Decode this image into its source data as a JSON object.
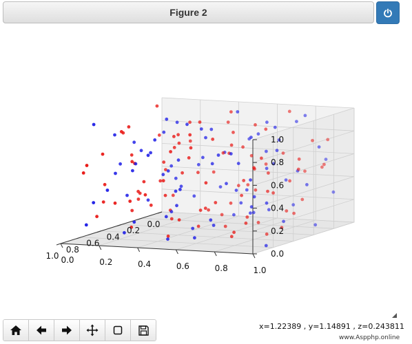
{
  "window": {
    "title": "Figure 2",
    "power_icon": "power-icon"
  },
  "toolbar": {
    "buttons": [
      {
        "name": "home-button",
        "icon": "home-icon"
      },
      {
        "name": "back-button",
        "icon": "arrow-left-icon"
      },
      {
        "name": "forward-button",
        "icon": "arrow-right-icon"
      },
      {
        "name": "pan-button",
        "icon": "move-icon"
      },
      {
        "name": "zoom-button",
        "icon": "square-icon"
      },
      {
        "name": "save-button",
        "icon": "floppy-icon"
      }
    ]
  },
  "status": {
    "coordinates": "x=1.22389 , y=1.14891 , z=0.243811",
    "watermark": "www.Aspphp.online"
  },
  "chart_data": {
    "type": "scatter",
    "dimensions": 3,
    "title": "",
    "xlabel": "",
    "ylabel": "",
    "zlabel": "",
    "xlim": [
      0,
      1
    ],
    "ylim": [
      0,
      1
    ],
    "zlim": [
      0,
      1
    ],
    "x_ticks": [
      "0.0",
      "0.2",
      "0.4",
      "0.6",
      "0.8",
      "1.0"
    ],
    "y_ticks": [
      "0.0",
      "0.2",
      "0.4",
      "0.6",
      "0.8",
      "1.0"
    ],
    "z_ticks": [
      "0.0",
      "0.2",
      "0.4",
      "0.6",
      "0.8",
      "1.0"
    ],
    "grid": true,
    "colors": {
      "red_series": "#e8120f",
      "blue_series": "#1919e6"
    },
    "series": [
      {
        "color": "#e8120f",
        "points": [
          [
            0.12,
            0.05,
            0.71
          ],
          [
            0.88,
            0.22,
            0.34
          ],
          [
            0.35,
            0.67,
            0.92
          ],
          [
            0.56,
            0.14,
            0.18
          ],
          [
            0.73,
            0.81,
            0.55
          ],
          [
            0.04,
            0.42,
            0.28
          ],
          [
            0.91,
            0.63,
            0.87
          ],
          [
            0.27,
            0.33,
            0.45
          ],
          [
            0.62,
            0.95,
            0.12
          ],
          [
            0.45,
            0.08,
            0.63
          ],
          [
            0.18,
            0.76,
            0.39
          ],
          [
            0.83,
            0.47,
            0.06
          ],
          [
            0.39,
            0.29,
            0.81
          ],
          [
            0.67,
            0.58,
            0.27
          ],
          [
            0.09,
            0.91,
            0.74
          ],
          [
            0.52,
            0.38,
            0.52
          ],
          [
            0.95,
            0.11,
            0.68
          ],
          [
            0.31,
            0.85,
            0.15
          ],
          [
            0.76,
            0.19,
            0.93
          ],
          [
            0.14,
            0.54,
            0.58
          ],
          [
            0.58,
            0.72,
            0.37
          ],
          [
            0.86,
            0.89,
            0.22
          ],
          [
            0.22,
            0.16,
            0.09
          ],
          [
            0.47,
            0.61,
            0.77
          ],
          [
            0.69,
            0.27,
            0.48
          ],
          [
            0.03,
            0.68,
            0.95
          ],
          [
            0.79,
            0.36,
            0.31
          ],
          [
            0.41,
            0.93,
            0.66
          ],
          [
            0.64,
            0.04,
            0.42
          ],
          [
            0.25,
            0.49,
            0.19
          ],
          [
            0.97,
            0.74,
            0.59
          ],
          [
            0.16,
            0.23,
            0.85
          ],
          [
            0.54,
            0.83,
            0.03
          ],
          [
            0.72,
            0.52,
            0.72
          ],
          [
            0.33,
            0.06,
            0.26
          ],
          [
            0.07,
            0.87,
            0.49
          ],
          [
            0.89,
            0.31,
            0.14
          ],
          [
            0.48,
            0.45,
            0.96
          ],
          [
            0.61,
            0.18,
            0.61
          ],
          [
            0.29,
            0.64,
            0.33
          ],
          [
            0.84,
            0.96,
            0.79
          ],
          [
            0.11,
            0.37,
            0.04
          ],
          [
            0.43,
            0.78,
            0.53
          ],
          [
            0.66,
            0.41,
            0.88
          ],
          [
            0.21,
            0.13,
            0.44
          ],
          [
            0.93,
            0.58,
            0.24
          ],
          [
            0.37,
            0.26,
            0.69
          ],
          [
            0.59,
            0.89,
            0.41
          ],
          [
            0.06,
            0.09,
            0.17
          ],
          [
            0.77,
            0.67,
            0.91
          ],
          [
            0.24,
            0.97,
            0.57
          ],
          [
            0.51,
            0.32,
            0.11
          ],
          [
            0.98,
            0.43,
            0.46
          ],
          [
            0.34,
            0.55,
            0.84
          ],
          [
            0.71,
            0.07,
            0.29
          ],
          [
            0.15,
            0.71,
            0.62
          ],
          [
            0.87,
            0.15,
            0.76
          ],
          [
            0.44,
            0.88,
            0.21
          ],
          [
            0.63,
            0.35,
            0.35
          ],
          [
            0.19,
            0.46,
            0.97
          ],
          [
            0.81,
            0.79,
            0.08
          ],
          [
            0.38,
            0.21,
            0.56
          ],
          [
            0.57,
            0.65,
            0.73
          ],
          [
            0.02,
            0.28,
            0.38
          ],
          [
            0.74,
            0.94,
            0.47
          ],
          [
            0.28,
            0.39,
            0.13
          ],
          [
            0.92,
            0.53,
            0.83
          ],
          [
            0.46,
            0.12,
            0.25
          ],
          [
            0.68,
            0.84,
            0.64
          ],
          [
            0.13,
            0.61,
            0.51
          ],
          [
            0.85,
            0.04,
            0.58
          ],
          [
            0.36,
            0.73,
            0.89
          ],
          [
            0.55,
            0.48,
            0.07
          ],
          [
            0.08,
            0.19,
            0.66
          ],
          [
            0.78,
            0.69,
            0.36
          ],
          [
            0.26,
            0.92,
            0.78
          ],
          [
            0.49,
            0.25,
            0.43
          ],
          [
            0.94,
            0.87,
            0.16
          ],
          [
            0.32,
            0.59,
            0.71
          ],
          [
            0.65,
            0.17,
            0.94
          ],
          [
            0.17,
            0.82,
            0.23
          ],
          [
            0.82,
            0.44,
            0.54
          ],
          [
            0.42,
            0.02,
            0.81
          ],
          [
            0.6,
            0.76,
            0.19
          ],
          [
            0.1,
            0.5,
            0.31
          ],
          [
            0.75,
            0.24,
            0.67
          ],
          [
            0.3,
            0.66,
            0.05
          ],
          [
            0.53,
            0.99,
            0.61
          ],
          [
            0.96,
            0.34,
            0.39
          ],
          [
            0.2,
            0.08,
            0.99
          ],
          [
            0.7,
            0.57,
            0.26
          ],
          [
            0.4,
            0.3,
            0.74
          ],
          [
            0.05,
            0.77,
            0.44
          ],
          [
            0.9,
            0.62,
            0.98
          ],
          [
            0.23,
            0.44,
            0.62
          ],
          [
            0.5,
            0.14,
            0.33
          ],
          [
            0.8,
            0.9,
            0.69
          ],
          [
            0.36,
            0.52,
            0.02
          ],
          [
            0.01,
            0.35,
            0.82
          ],
          [
            0.68,
            0.02,
            0.15
          ]
        ]
      },
      {
        "color": "#1919e6",
        "points": [
          [
            0.09,
            0.12,
            0.33
          ],
          [
            0.84,
            0.29,
            0.62
          ],
          [
            0.31,
            0.72,
            0.17
          ],
          [
            0.58,
            0.06,
            0.84
          ],
          [
            0.72,
            0.86,
            0.41
          ],
          [
            0.03,
            0.47,
            0.69
          ],
          [
            0.93,
            0.66,
            0.09
          ],
          [
            0.26,
            0.35,
            0.58
          ],
          [
            0.61,
            0.92,
            0.79
          ],
          [
            0.44,
            0.16,
            0.24
          ],
          [
            0.17,
            0.79,
            0.91
          ],
          [
            0.87,
            0.53,
            0.47
          ],
          [
            0.38,
            0.25,
            0.13
          ],
          [
            0.66,
            0.61,
            0.66
          ],
          [
            0.11,
            0.95,
            0.29
          ],
          [
            0.53,
            0.41,
            0.95
          ],
          [
            0.96,
            0.15,
            0.36
          ],
          [
            0.33,
            0.88,
            0.53
          ],
          [
            0.77,
            0.21,
            0.05
          ],
          [
            0.13,
            0.57,
            0.77
          ],
          [
            0.55,
            0.75,
            0.21
          ],
          [
            0.89,
            0.93,
            0.61
          ],
          [
            0.21,
            0.19,
            0.86
          ],
          [
            0.48,
            0.64,
            0.38
          ],
          [
            0.7,
            0.31,
            0.74
          ],
          [
            0.05,
            0.71,
            0.14
          ],
          [
            0.81,
            0.39,
            0.89
          ],
          [
            0.41,
            0.97,
            0.44
          ],
          [
            0.63,
            0.09,
            0.52
          ],
          [
            0.24,
            0.52,
            0.99
          ],
          [
            0.98,
            0.77,
            0.27
          ],
          [
            0.15,
            0.27,
            0.48
          ],
          [
            0.51,
            0.85,
            0.64
          ],
          [
            0.74,
            0.55,
            0.11
          ],
          [
            0.35,
            0.04,
            0.71
          ],
          [
            0.07,
            0.89,
            0.56
          ],
          [
            0.9,
            0.33,
            0.19
          ],
          [
            0.46,
            0.47,
            0.82
          ],
          [
            0.59,
            0.13,
            0.32
          ],
          [
            0.28,
            0.69,
            0.67
          ],
          [
            0.85,
            0.99,
            0.03
          ],
          [
            0.12,
            0.39,
            0.59
          ],
          [
            0.42,
            0.81,
            0.93
          ],
          [
            0.67,
            0.43,
            0.28
          ],
          [
            0.19,
            0.11,
            0.76
          ],
          [
            0.94,
            0.59,
            0.51
          ],
          [
            0.36,
            0.29,
            0.35
          ],
          [
            0.57,
            0.91,
            0.87
          ],
          [
            0.04,
            0.07,
            0.42
          ],
          [
            0.78,
            0.68,
            0.16
          ],
          [
            0.27,
            0.96,
            0.73
          ],
          [
            0.52,
            0.36,
            0.63
          ],
          [
            0.99,
            0.45,
            0.81
          ],
          [
            0.32,
            0.58,
            0.22
          ],
          [
            0.73,
            0.03,
            0.97
          ],
          [
            0.16,
            0.73,
            0.39
          ],
          [
            0.88,
            0.18,
            0.45
          ],
          [
            0.45,
            0.87,
            0.12
          ],
          [
            0.64,
            0.37,
            0.57
          ],
          [
            0.22,
            0.49,
            0.08
          ],
          [
            0.8,
            0.82,
            0.72
          ],
          [
            0.39,
            0.23,
            0.94
          ],
          [
            0.56,
            0.63,
            0.46
          ],
          [
            0.01,
            0.31,
            0.25
          ],
          [
            0.75,
            0.94,
            0.37
          ],
          [
            0.29,
            0.41,
            0.84
          ],
          [
            0.91,
            0.51,
            0.06
          ],
          [
            0.47,
            0.14,
            0.68
          ],
          [
            0.69,
            0.83,
            0.31
          ],
          [
            0.14,
            0.62,
            0.88
          ],
          [
            0.86,
            0.06,
            0.13
          ],
          [
            0.37,
            0.74,
            0.55
          ],
          [
            0.54,
            0.49,
            0.92
          ],
          [
            0.08,
            0.21,
            0.18
          ],
          [
            0.79,
            0.71,
            0.78
          ],
          [
            0.25,
            0.93,
            0.04
          ],
          [
            0.5,
            0.27,
            0.49
          ],
          [
            0.95,
            0.86,
            0.85
          ],
          [
            0.3,
            0.6,
            0.33
          ],
          [
            0.62,
            0.19,
            0.61
          ],
          [
            0.18,
            0.84,
            0.97
          ],
          [
            0.83,
            0.46,
            0.23
          ],
          [
            0.43,
            0.01,
            0.54
          ],
          [
            0.6,
            0.78,
            0.89
          ],
          [
            0.1,
            0.53,
            0.07
          ]
        ]
      }
    ]
  }
}
